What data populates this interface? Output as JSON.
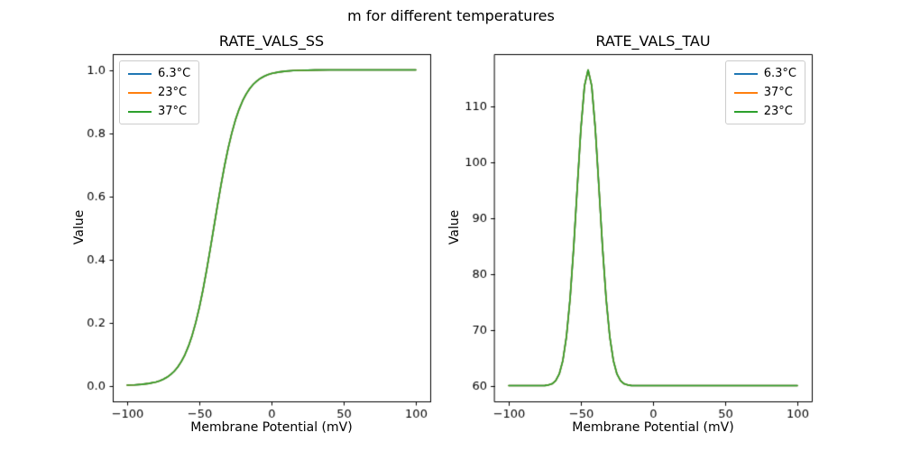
{
  "figure": {
    "suptitle": "m for different temperatures",
    "background": "#ffffff"
  },
  "chart_data": [
    {
      "type": "line",
      "title": "RATE_VALS_SS",
      "xlabel": "Membrane Potential (mV)",
      "ylabel": "Value",
      "xlim": [
        -110,
        110
      ],
      "ylim": [
        -0.05,
        1.05
      ],
      "grid": false,
      "legend_loc": "upper left",
      "curves_overlap": true,
      "xtick_values": [
        -100,
        -50,
        0,
        50,
        100
      ],
      "xtick_labels": [
        "−100",
        "−50",
        "0",
        "50",
        "100"
      ],
      "ytick_values": [
        0.0,
        0.2,
        0.4,
        0.6,
        0.8,
        1.0
      ],
      "ytick_labels": [
        "0.0",
        "0.2",
        "0.4",
        "0.6",
        "0.8",
        "1.0"
      ],
      "series": [
        {
          "name": "6.3°C",
          "color": "#1f77b4"
        },
        {
          "name": "23°C",
          "color": "#ff7f0e"
        },
        {
          "name": "37°C",
          "color": "#2ca02c"
        }
      ],
      "x": [
        -100,
        -95,
        -90,
        -85,
        -80,
        -77.5,
        -75,
        -72.5,
        -70,
        -67.5,
        -65,
        -62.5,
        -60,
        -57.5,
        -55,
        -52.5,
        -50,
        -47.5,
        -45,
        -42.5,
        -40,
        -37.5,
        -35,
        -32.5,
        -30,
        -27.5,
        -25,
        -22.5,
        -20,
        -17.5,
        -15,
        -12.5,
        -10,
        -7.5,
        -5,
        -2.5,
        0,
        5,
        10,
        15,
        20,
        30,
        40,
        50,
        60,
        70,
        80,
        90,
        100
      ],
      "y": [
        0.0013,
        0.0022,
        0.0039,
        0.0067,
        0.0116,
        0.0153,
        0.0201,
        0.0263,
        0.0345,
        0.045,
        0.0585,
        0.0759,
        0.0978,
        0.1252,
        0.1589,
        0.1996,
        0.2476,
        0.3029,
        0.3646,
        0.431,
        0.5,
        0.569,
        0.6354,
        0.6971,
        0.7524,
        0.8004,
        0.8411,
        0.8748,
        0.9022,
        0.9241,
        0.9415,
        0.955,
        0.9655,
        0.9737,
        0.9799,
        0.9847,
        0.9884,
        0.9933,
        0.9961,
        0.9978,
        0.9987,
        0.9996,
        0.9999,
        1.0,
        1.0,
        1.0,
        1.0,
        1.0,
        1.0
      ]
    },
    {
      "type": "line",
      "title": "RATE_VALS_TAU",
      "xlabel": "Membrane Potential (mV)",
      "ylabel": "Value",
      "xlim": [
        -110,
        110
      ],
      "ylim": [
        57.18,
        119.33
      ],
      "grid": false,
      "legend_loc": "upper right",
      "curves_overlap": true,
      "xtick_values": [
        -100,
        -50,
        0,
        50,
        100
      ],
      "xtick_labels": [
        "−100",
        "−50",
        "0",
        "50",
        "100"
      ],
      "ytick_values": [
        60,
        70,
        80,
        90,
        100,
        110
      ],
      "ytick_labels": [
        "60",
        "70",
        "80",
        "90",
        "100",
        "110"
      ],
      "series": [
        {
          "name": "6.3°C",
          "color": "#1f77b4"
        },
        {
          "name": "37°C",
          "color": "#ff7f0e"
        },
        {
          "name": "23°C",
          "color": "#2ca02c"
        }
      ],
      "x": [
        -100,
        -90,
        -80,
        -77.5,
        -75,
        -72.5,
        -70,
        -67.5,
        -65,
        -62.5,
        -60,
        -57.5,
        -55,
        -52.5,
        -50,
        -47.5,
        -45,
        -42.5,
        -40,
        -37.5,
        -35,
        -32.5,
        -30,
        -27.5,
        -25,
        -22.5,
        -20,
        -17.5,
        -15,
        -12.5,
        -10,
        -5,
        0,
        10,
        20,
        30,
        40,
        50,
        60,
        70,
        80,
        90,
        100
      ],
      "y": [
        60,
        60,
        60,
        60.01,
        60.03,
        60.11,
        60.32,
        60.86,
        62.07,
        64.49,
        68.8,
        75.53,
        84.72,
        95.49,
        105.95,
        113.66,
        116.5,
        113.66,
        105.95,
        95.49,
        84.72,
        75.53,
        68.8,
        64.49,
        62.07,
        60.86,
        60.32,
        60.11,
        60.03,
        60.01,
        60,
        60,
        60,
        60,
        60,
        60,
        60,
        60,
        60,
        60,
        60,
        60,
        60
      ]
    }
  ]
}
